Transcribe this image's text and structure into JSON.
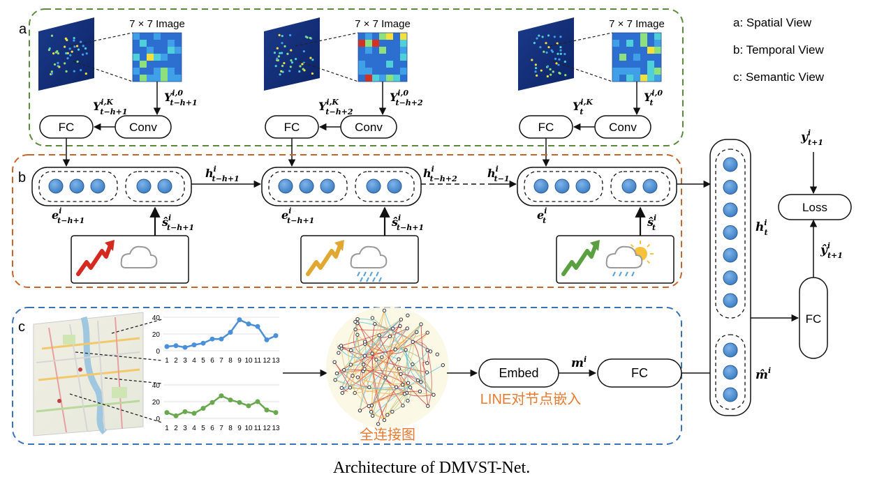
{
  "caption": "Architecture of DMVST-Net.",
  "panels": {
    "a": {
      "tag": "a"
    },
    "b": {
      "tag": "b"
    },
    "c": {
      "tag": "c"
    }
  },
  "legend": [
    "a: Spatial View",
    "b: Temporal View",
    "c: Semantic View"
  ],
  "spatial": {
    "image_label": "7 × 7 Image",
    "fc_label": "FC",
    "conv_label": "Conv",
    "blocks": [
      {
        "conv_in": "Y",
        "conv_in_sup": "i,0",
        "conv_in_sub": "t−h+1",
        "conv_out": "Y",
        "conv_out_sup": "i,K",
        "conv_out_sub": "t−h+1"
      },
      {
        "conv_in": "Y",
        "conv_in_sup": "i,0",
        "conv_in_sub": "t−h+2",
        "conv_out": "Y",
        "conv_out_sup": "i,K",
        "conv_out_sub": "t−h+2"
      },
      {
        "conv_in": "Y",
        "conv_in_sup": "i,0",
        "conv_in_sub": "t",
        "conv_out": "Y",
        "conv_out_sup": "i,K",
        "conv_out_sub": "t"
      }
    ]
  },
  "temporal": {
    "steps": [
      {
        "e": "e",
        "e_sup": "i",
        "e_sub": "t−h+1",
        "s": "ŝ",
        "s_sup": "i",
        "s_sub": "t−h+1"
      },
      {
        "e": "e",
        "e_sup": "i",
        "e_sub": "t−h+1",
        "s": "ŝ",
        "s_sup": "i",
        "s_sub": "t−h+1"
      },
      {
        "e": "e",
        "e_sup": "i",
        "e_sub": "t",
        "s": "ŝ",
        "s_sup": "i",
        "s_sub": "t"
      }
    ],
    "hidden": [
      {
        "h": "h",
        "sup": "i",
        "sub": "t−h+1"
      },
      {
        "h": "h",
        "sup": "i",
        "sub": "t−h+2"
      },
      {
        "h": "h",
        "sup": "i",
        "sub": "t−1"
      }
    ]
  },
  "semantic": {
    "embed_label": "Embed",
    "fc_label": "FC",
    "m_label": "m",
    "m_sup": "i",
    "line_label": "LINE对节点嵌入",
    "graph_label": "全连接图",
    "chart1": {
      "y_ticks": [
        "0",
        "20",
        "40"
      ],
      "x_ticks": [
        "1",
        "2",
        "3",
        "4",
        "5",
        "6",
        "7",
        "8",
        "9",
        "10",
        "11",
        "12",
        "13"
      ],
      "values": [
        5,
        6,
        4,
        7,
        9,
        14,
        14,
        22,
        37,
        32,
        29,
        13,
        18
      ],
      "color": "#4a90d9"
    },
    "chart2": {
      "y_ticks": [
        "0",
        "20",
        "40"
      ],
      "x_ticks": [
        "1",
        "2",
        "3",
        "4",
        "5",
        "6",
        "7",
        "8",
        "9",
        "10",
        "11",
        "12",
        "13"
      ],
      "values": [
        7,
        3,
        8,
        6,
        12,
        19,
        27,
        22,
        19,
        15,
        20,
        10,
        7
      ],
      "color": "#6aa84f"
    }
  },
  "output": {
    "h_label": "h",
    "h_sup": "i",
    "h_sub": "t",
    "m_label": "m̂",
    "m_sup": "i",
    "fc_label": "FC",
    "loss_label": "Loss",
    "y_label": "y",
    "y_sup": "i",
    "y_sub": "t+1",
    "yhat_label": "ŷ",
    "yhat_sup": "i",
    "yhat_sub": "t+1"
  },
  "colors": {
    "spatial_border": "#5a8a3a",
    "temporal_border": "#c8642a",
    "semantic_border": "#3a72b8",
    "node_fill": "#4a8fd4",
    "chinese_text": "#e87a30"
  }
}
